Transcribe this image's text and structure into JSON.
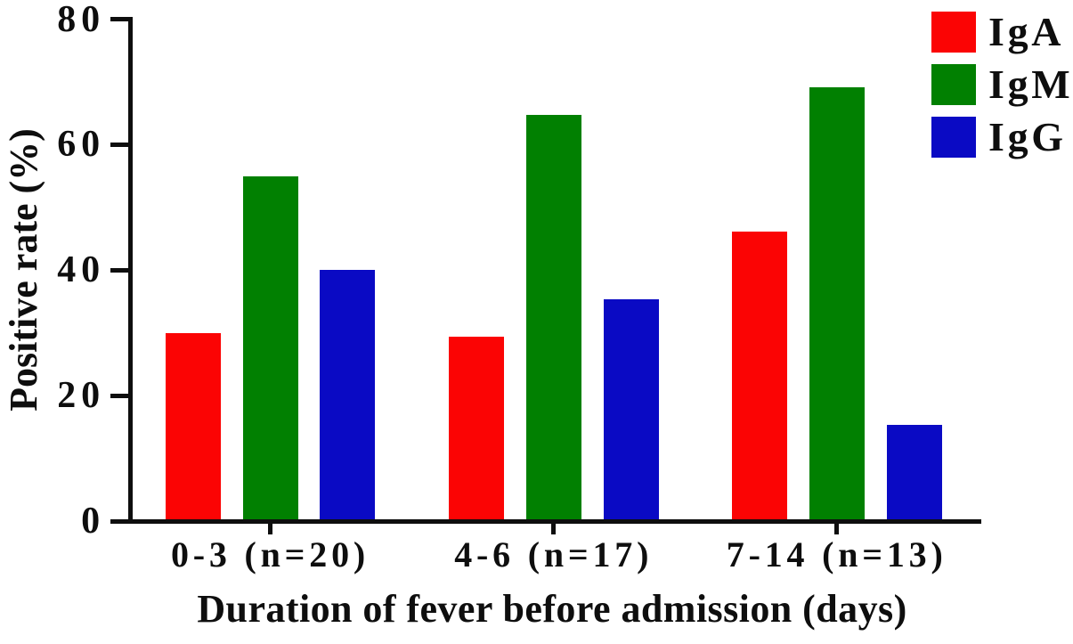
{
  "chart_data": {
    "type": "bar",
    "title": "",
    "xlabel": "Duration of fever before admission (days)",
    "ylabel": "Positive rate (%)",
    "ylim": [
      0,
      80
    ],
    "yticks": [
      80,
      60,
      40,
      20,
      0
    ],
    "grid": false,
    "legend_position": "top-right",
    "categories": [
      "0-3 (n=20)",
      "4-6 (n=17)",
      "7-14 (n=13)"
    ],
    "series": [
      {
        "name": "IgA",
        "color": "#fb0404",
        "values": [
          30.0,
          29.4,
          46.2
        ]
      },
      {
        "name": "IgM",
        "color": "#018001",
        "values": [
          55.0,
          64.7,
          69.2
        ]
      },
      {
        "name": "IgG",
        "color": "#0a0ac4",
        "values": [
          40.0,
          35.3,
          15.4
        ]
      }
    ],
    "axis_color": "#0e0e0e"
  }
}
